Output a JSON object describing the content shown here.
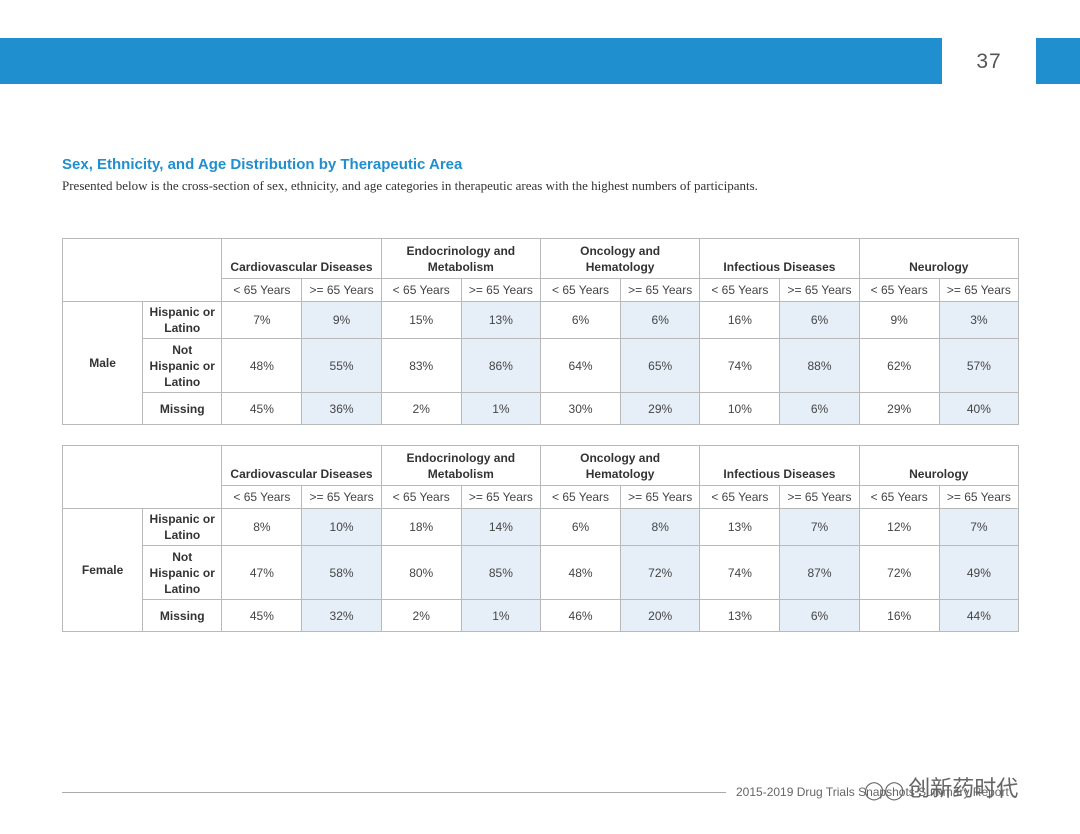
{
  "page": {
    "number": "37",
    "title": "Sex, Ethnicity, and Age Distribution by Therapeutic Area",
    "subtitle": "Presented below is the cross-section of sex, ethnicity, and age categories in therapeutic areas with the highest numbers of participants.",
    "footer": "2015-2019 Drug Trials Snapshots Summary Report",
    "watermark": "创新药时代",
    "watermark_icon": "wechat-icon"
  },
  "areas": [
    [
      "Cardiovascular Diseases"
    ],
    [
      "Endocrinology and",
      "Metabolism"
    ],
    [
      "Oncology and",
      "Hematology"
    ],
    [
      "Infectious Diseases"
    ],
    [
      "Neurology"
    ]
  ],
  "age_labels": {
    "under": "< 65 Years",
    "over": ">= 65 Years"
  },
  "tables": [
    {
      "group": "Male",
      "rows": [
        {
          "ethnicity": [
            "Hispanic or",
            "Latino"
          ],
          "values": [
            "7%",
            "9%",
            "15%",
            "13%",
            "6%",
            "6%",
            "16%",
            "6%",
            "9%",
            "3%"
          ]
        },
        {
          "ethnicity": [
            "Not",
            "Hispanic or",
            "Latino"
          ],
          "values": [
            "48%",
            "55%",
            "83%",
            "86%",
            "64%",
            "65%",
            "74%",
            "88%",
            "62%",
            "57%"
          ]
        },
        {
          "ethnicity": [
            "Missing"
          ],
          "values": [
            "45%",
            "36%",
            "2%",
            "1%",
            "30%",
            "29%",
            "10%",
            "6%",
            "29%",
            "40%"
          ]
        }
      ]
    },
    {
      "group": "Female",
      "rows": [
        {
          "ethnicity": [
            "Hispanic or",
            "Latino"
          ],
          "values": [
            "8%",
            "10%",
            "18%",
            "14%",
            "6%",
            "8%",
            "13%",
            "7%",
            "12%",
            "7%"
          ]
        },
        {
          "ethnicity": [
            "Not",
            "Hispanic or",
            "Latino"
          ],
          "values": [
            "47%",
            "58%",
            "80%",
            "85%",
            "48%",
            "72%",
            "74%",
            "87%",
            "72%",
            "49%"
          ]
        },
        {
          "ethnicity": [
            "Missing"
          ],
          "values": [
            "45%",
            "32%",
            "2%",
            "1%",
            "46%",
            "20%",
            "13%",
            "6%",
            "16%",
            "44%"
          ]
        }
      ]
    }
  ],
  "colors": {
    "accent": "#1f8fcf",
    "shade": "#e6eff8"
  }
}
